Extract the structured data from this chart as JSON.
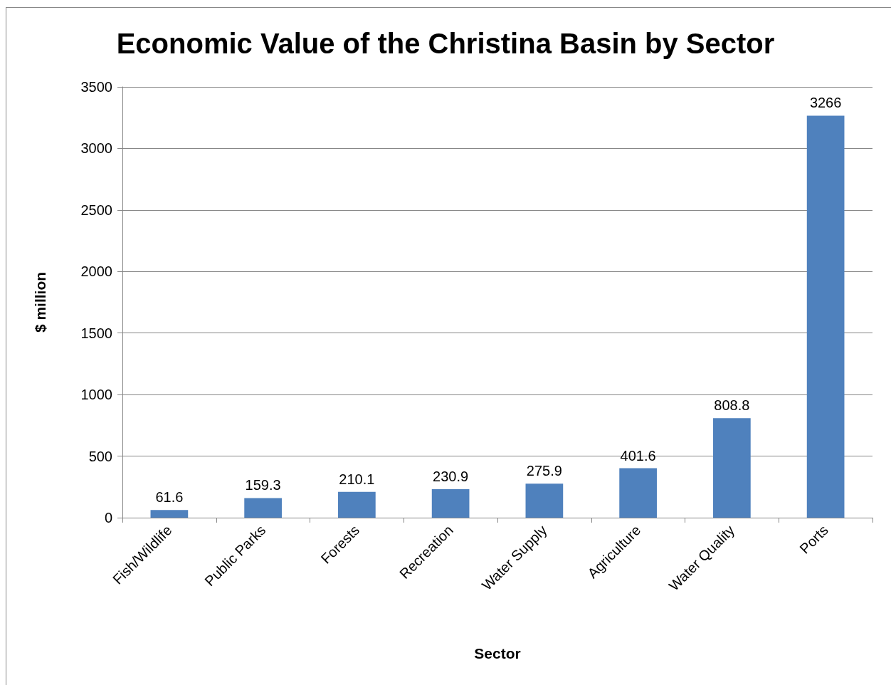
{
  "chart_data": {
    "type": "bar",
    "title": "Economic Value of the Christina Basin by Sector",
    "xlabel": "Sector",
    "ylabel": "$ million",
    "categories": [
      "Fish/Wildlife",
      "Public Parks",
      "Forests",
      "Recreation",
      "Water Supply",
      "Agriculture",
      "Water Quality",
      "Ports"
    ],
    "values": [
      61.6,
      159.3,
      210.1,
      230.9,
      275.9,
      401.6,
      808.8,
      3266
    ],
    "color": "#4f81bd",
    "ylim": [
      0,
      3500
    ],
    "yticks": [
      0,
      500,
      1000,
      1500,
      2000,
      2500,
      3000,
      3500
    ],
    "grid": "y",
    "data_labels": true
  }
}
